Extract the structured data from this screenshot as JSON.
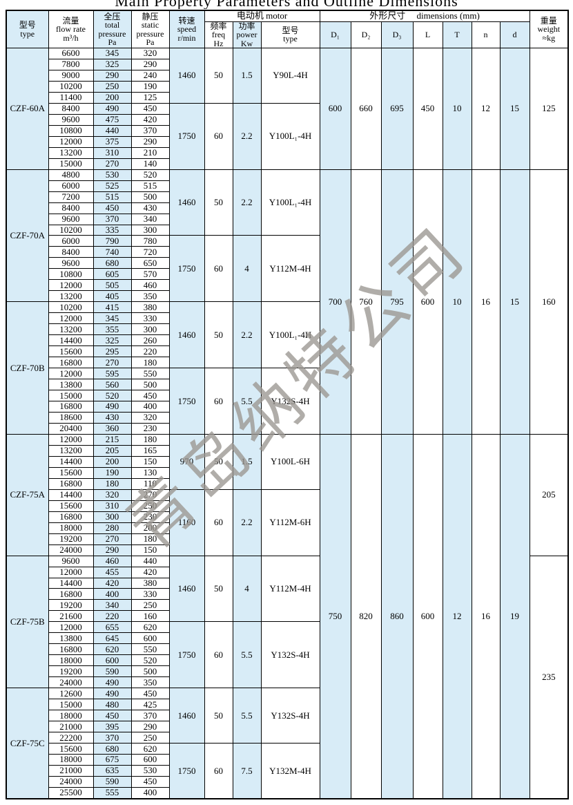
{
  "title": "Main Property Parameters and Outline Dimensions",
  "watermark": "青岛纳特公司",
  "colors": {
    "band": "#d8ecf7",
    "border": "#000000",
    "paper": "#ffffff"
  },
  "header": {
    "type_col": {
      "zh": "型号",
      "l1": "type"
    },
    "flow": {
      "zh": "流量",
      "l1": "flow rate",
      "l2": "m³/h"
    },
    "total": {
      "zh": "全压",
      "l1": "total",
      "l2": "pressure",
      "l3": "Pa"
    },
    "static": {
      "zh": "静压",
      "l1": "static",
      "l2": "pressure",
      "l3": "Pa"
    },
    "speed": {
      "zh": "转速",
      "l1": "speed",
      "l2": "r/min"
    },
    "motor_group": "电动机  motor",
    "freq": {
      "zh": "频率",
      "l1": "freq",
      "l2": "Hz"
    },
    "power": {
      "zh": "功率",
      "l1": "power",
      "l2": "Kw"
    },
    "motor_type": {
      "zh": "型号",
      "l1": "type"
    },
    "dims_group": "外形尺寸　 dimensions (mm)",
    "dims": [
      "D₁",
      "D₂",
      "D₃",
      "L",
      "T",
      "n",
      "d"
    ],
    "weight": {
      "zh": "重量",
      "l1": "weight",
      "l2": "≈kg"
    }
  },
  "groups": [
    {
      "model": "CZF-60A",
      "blocks": [
        {
          "speed": "1460",
          "freq": "50",
          "power": "1.5",
          "motor": "Y90L-4H",
          "rows": [
            [
              "6600",
              "345",
              "320"
            ],
            [
              "7800",
              "325",
              "290"
            ],
            [
              "9000",
              "290",
              "240"
            ],
            [
              "10200",
              "250",
              "190"
            ],
            [
              "11400",
              "200",
              "125"
            ]
          ]
        },
        {
          "speed": "1750",
          "freq": "60",
          "power": "2.2",
          "motor": "Y100L₁-4H",
          "rows": [
            [
              "8400",
              "490",
              "450"
            ],
            [
              "9600",
              "475",
              "420"
            ],
            [
              "10800",
              "440",
              "370"
            ],
            [
              "12000",
              "375",
              "290"
            ],
            [
              "13200",
              "310",
              "210"
            ],
            [
              "15000",
              "270",
              "140"
            ]
          ]
        }
      ]
    },
    {
      "model": "CZF-70A",
      "blocks": [
        {
          "speed": "1460",
          "freq": "50",
          "power": "2.2",
          "motor": "Y100L₁-4H",
          "rows": [
            [
              "4800",
              "530",
              "520"
            ],
            [
              "6000",
              "525",
              "515"
            ],
            [
              "7200",
              "515",
              "500"
            ],
            [
              "8400",
              "450",
              "430"
            ],
            [
              "9600",
              "370",
              "340"
            ],
            [
              "10200",
              "335",
              "300"
            ]
          ]
        },
        {
          "speed": "1750",
          "freq": "60",
          "power": "4",
          "motor": "Y112M-4H",
          "rows": [
            [
              "6000",
              "790",
              "780"
            ],
            [
              "8400",
              "740",
              "720"
            ],
            [
              "9600",
              "680",
              "650"
            ],
            [
              "10800",
              "605",
              "570"
            ],
            [
              "12000",
              "505",
              "460"
            ],
            [
              "13200",
              "405",
              "350"
            ]
          ]
        }
      ]
    },
    {
      "model": "CZF-70B",
      "blocks": [
        {
          "speed": "1460",
          "freq": "50",
          "power": "2.2",
          "motor": "Y100L₁-4H",
          "rows": [
            [
              "10200",
              "415",
              "380"
            ],
            [
              "12000",
              "345",
              "330"
            ],
            [
              "13200",
              "355",
              "300"
            ],
            [
              "14400",
              "325",
              "260"
            ],
            [
              "15600",
              "295",
              "220"
            ],
            [
              "16800",
              "270",
              "180"
            ]
          ]
        },
        {
          "speed": "1750",
          "freq": "60",
          "power": "5.5",
          "motor": "Y132S-4H",
          "rows": [
            [
              "12000",
              "595",
              "550"
            ],
            [
              "13800",
              "560",
              "500"
            ],
            [
              "15000",
              "520",
              "450"
            ],
            [
              "16800",
              "490",
              "400"
            ],
            [
              "18600",
              "430",
              "320"
            ],
            [
              "20400",
              "360",
              "230"
            ]
          ]
        }
      ]
    },
    {
      "model": "CZF-75A",
      "blocks": [
        {
          "speed": "970",
          "freq": "50",
          "power": "1.5",
          "motor": "Y100L-6H",
          "rows": [
            [
              "12000",
              "215",
              "180"
            ],
            [
              "13200",
              "205",
              "165"
            ],
            [
              "14400",
              "200",
              "150"
            ],
            [
              "15600",
              "190",
              "130"
            ],
            [
              "16800",
              "180",
              "110"
            ]
          ]
        },
        {
          "speed": "1160",
          "freq": "60",
          "power": "2.2",
          "motor": "Y112M-6H",
          "rows": [
            [
              "14400",
              "320",
              "270"
            ],
            [
              "15600",
              "310",
              "250"
            ],
            [
              "16800",
              "300",
              "230"
            ],
            [
              "18000",
              "280",
              "200"
            ],
            [
              "19200",
              "270",
              "180"
            ],
            [
              "24000",
              "290",
              "150"
            ]
          ]
        }
      ]
    },
    {
      "model": "CZF-75B",
      "blocks": [
        {
          "speed": "1460",
          "freq": "50",
          "power": "4",
          "motor": "Y112M-4H",
          "rows": [
            [
              "9600",
              "460",
              "440"
            ],
            [
              "12000",
              "455",
              "420"
            ],
            [
              "14400",
              "420",
              "380"
            ],
            [
              "16800",
              "400",
              "330"
            ],
            [
              "19200",
              "340",
              "250"
            ],
            [
              "21600",
              "220",
              "160"
            ]
          ]
        },
        {
          "speed": "1750",
          "freq": "60",
          "power": "5.5",
          "motor": "Y132S-4H",
          "rows": [
            [
              "12000",
              "655",
              "620"
            ],
            [
              "13800",
              "645",
              "600"
            ],
            [
              "16800",
              "620",
              "550"
            ],
            [
              "18000",
              "600",
              "520"
            ],
            [
              "19200",
              "590",
              "500"
            ],
            [
              "24000",
              "490",
              "350"
            ]
          ]
        }
      ]
    },
    {
      "model": "CZF-75C",
      "blocks": [
        {
          "speed": "1460",
          "freq": "50",
          "power": "5.5",
          "motor": "Y132S-4H",
          "rows": [
            [
              "12600",
              "490",
              "450"
            ],
            [
              "15000",
              "480",
              "425"
            ],
            [
              "18000",
              "450",
              "370"
            ],
            [
              "21000",
              "395",
              "290"
            ],
            [
              "22200",
              "370",
              "250"
            ]
          ]
        },
        {
          "speed": "1750",
          "freq": "60",
          "power": "7.5",
          "motor": "Y132M-4H",
          "rows": [
            [
              "15600",
              "680",
              "620"
            ],
            [
              "18000",
              "675",
              "600"
            ],
            [
              "21000",
              "635",
              "530"
            ],
            [
              "24000",
              "590",
              "450"
            ],
            [
              "25500",
              "555",
              "400"
            ]
          ]
        }
      ]
    }
  ],
  "dim_spans": [
    {
      "start": 0,
      "count": 1,
      "values": [
        "600",
        "660",
        "695",
        "450",
        "10",
        "12",
        "15"
      ]
    },
    {
      "start": 1,
      "count": 2,
      "values": [
        "700",
        "760",
        "795",
        "600",
        "10",
        "16",
        "15"
      ]
    },
    {
      "start": 3,
      "count": 3,
      "values": [
        "750",
        "820",
        "860",
        "600",
        "12",
        "16",
        "19"
      ]
    }
  ],
  "weight_spans": [
    {
      "start": 0,
      "count": 1,
      "value": "125"
    },
    {
      "start": 1,
      "count": 2,
      "value": "160"
    },
    {
      "start": 3,
      "count": 1,
      "value": "205"
    },
    {
      "start": 4,
      "count": 2,
      "value": "235"
    }
  ]
}
